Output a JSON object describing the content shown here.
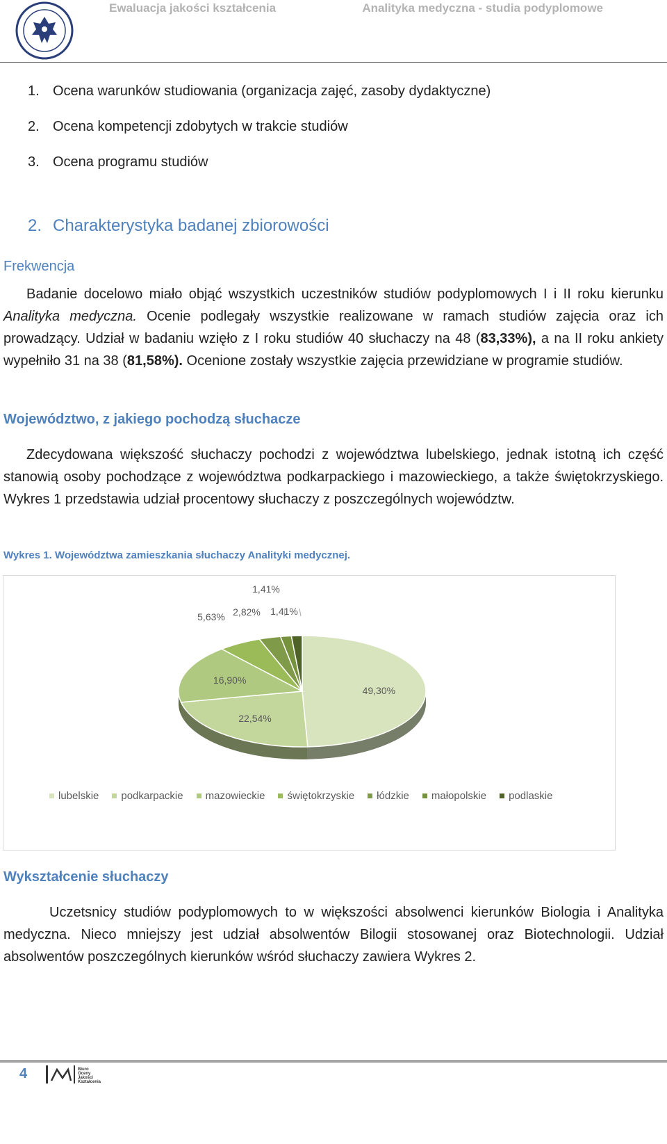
{
  "header": {
    "left_title": "Ewaluacja jakości kształcenia",
    "right_title": "Analityka medyczna - studia podyplomowe",
    "logo_text": "UNIWERSYTET MEDYCZNY W LUBLINIE"
  },
  "toc": [
    {
      "num": "1.",
      "text": "Ocena warunków studiowania (organizacja zajęć, zasoby dydaktyczne)"
    },
    {
      "num": "2.",
      "text": "Ocena kompetencji zdobytych w trakcie studiów"
    },
    {
      "num": "3.",
      "text": "Ocena programu studiów"
    }
  ],
  "section": {
    "num": "2.",
    "title": "Charakterystyka badanej zbiorowości"
  },
  "frekwencja": {
    "heading": "Frekwencja",
    "p1": "Badanie docelowo miało objąć wszystkich uczestników studiów podyplomowych I i II roku kierunku",
    "p_italic": "Analityka medyczna.",
    "p2": "Ocenie podlegały wszystkie realizowane w ramach studiów zajęcia oraz ich prowadzący. Udział w badaniu wzięło z I roku studiów 40 słuchaczy na 48 (",
    "b1": "83,33%),",
    "p3": "a na II roku ankiety wypełniło 31 na 38 (",
    "b2": "81,58%).",
    "p4": "Ocenione zostały wszystkie zajęcia przewidziane w programie studiów."
  },
  "wojewodztwo": {
    "heading": "Województwo, z jakiego pochodzą słuchacze",
    "text": "Zdecydowana większość słuchaczy pochodzi z województwa lubelskiego, jednak istotną ich część stanowią osoby pochodzące z województwa podkarpackiego i mazowieckiego, a także świętokrzyskiego. Wykres 1 przedstawia udział procentowy słuchaczy z poszczególnych województw."
  },
  "caption": "Wykres 1. Województwa zamieszkania słuchaczy Analityki medycznej.",
  "chart_data": {
    "type": "pie",
    "categories": [
      "lubelskie",
      "podkarpackie",
      "mazowieckie",
      "świętokrzyskie",
      "łódzkie",
      "małopolskie",
      "podlaskie"
    ],
    "values": [
      49.3,
      22.54,
      16.9,
      5.63,
      2.82,
      1.41,
      1.41
    ],
    "data_labels": [
      "49,30%",
      "22,54%",
      "16,90%",
      "5,63%",
      "2,82%",
      "1,41%",
      "1,41%"
    ],
    "colors": [
      "#d7e4bd",
      "#c3d69b",
      "#afca80",
      "#9bbb59",
      "#7f9a48",
      "#76923c",
      "#4f6228"
    ],
    "legend_position": "bottom",
    "style": "3d"
  },
  "wyksztalcenie": {
    "heading": "Wykształcenie słuchaczy",
    "text": "Uczetsnicy studiów podyplomowych to w większości absolwenci kierunków Biologia i Analityka medyczna. Nieco mniejszy jest udział absolwentów Bilogii stosowanej oraz Biotechnologii.  Udział absolwentów poszczególnych kierunków wśród słuchaczy zawiera Wykres 2."
  },
  "footer": {
    "page_number": "4",
    "logo_text": "Biuro Oceny Jakości Kształcenia"
  }
}
